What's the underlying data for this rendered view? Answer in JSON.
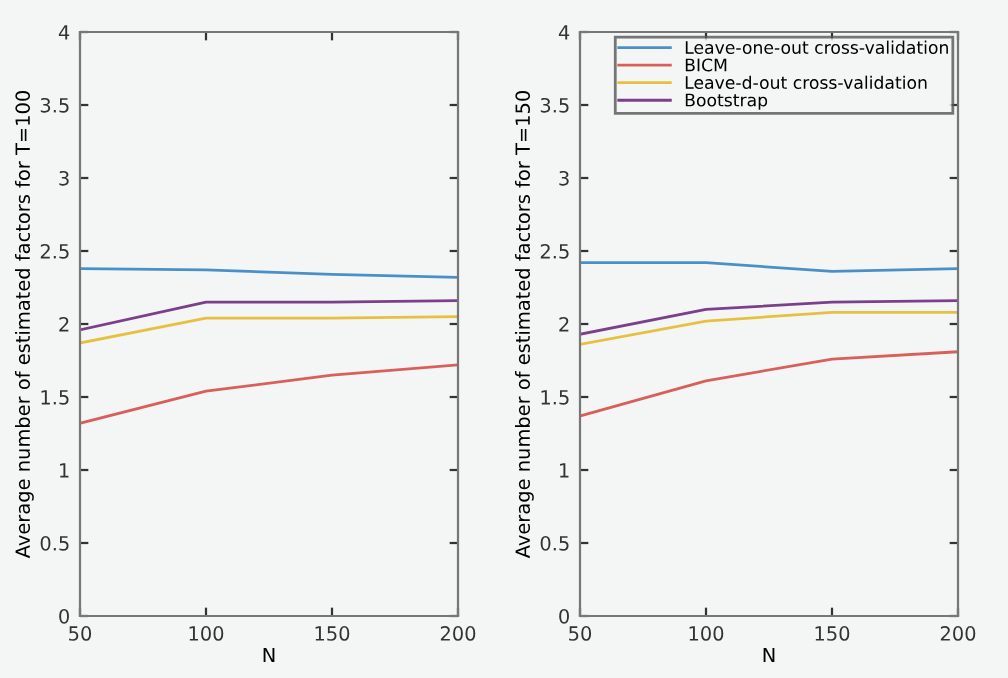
{
  "chart_data": [
    {
      "type": "line",
      "xlabel": "N",
      "ylabel": "Average number of estimated factors for T=100",
      "x": [
        50,
        100,
        150,
        200
      ],
      "xlim": [
        50,
        200
      ],
      "xticks": [
        50,
        100,
        150,
        200
      ],
      "ylim": [
        0,
        4
      ],
      "yticks": [
        0,
        0.5,
        1,
        1.5,
        2,
        2.5,
        3,
        3.5,
        4
      ],
      "grid": false,
      "legend": false,
      "series": [
        {
          "color": "#4a90c8",
          "values": [
            2.38,
            2.37,
            2.34,
            2.32
          ]
        },
        {
          "color": "#d9605a",
          "values": [
            1.32,
            1.54,
            1.65,
            1.72
          ]
        },
        {
          "color": "#e8c040",
          "values": [
            1.87,
            2.04,
            2.04,
            2.05
          ]
        },
        {
          "color": "#7b3f8c",
          "values": [
            1.96,
            2.15,
            2.15,
            2.16
          ]
        }
      ]
    },
    {
      "type": "line",
      "xlabel": "N",
      "ylabel": "Average number of estimated factors for T=150",
      "x": [
        50,
        100,
        150,
        200
      ],
      "xlim": [
        50,
        200
      ],
      "xticks": [
        50,
        100,
        150,
        200
      ],
      "ylim": [
        0,
        4
      ],
      "yticks": [
        0,
        0.5,
        1,
        1.5,
        2,
        2.5,
        3,
        3.5,
        4
      ],
      "grid": false,
      "legend": "top right",
      "series": [
        {
          "name": "Leave-one-out cross-validation",
          "color": "#4a90c8",
          "values": [
            2.42,
            2.42,
            2.36,
            2.38
          ]
        },
        {
          "name": "BICM",
          "color": "#d9605a",
          "values": [
            1.37,
            1.61,
            1.76,
            1.81
          ]
        },
        {
          "name": "Leave-d-out cross-validation",
          "color": "#e8c040",
          "values": [
            1.86,
            2.02,
            2.08,
            2.08
          ]
        },
        {
          "name": "Bootstrap",
          "color": "#7b3f8c",
          "values": [
            1.93,
            2.1,
            2.15,
            2.16
          ]
        }
      ]
    }
  ]
}
